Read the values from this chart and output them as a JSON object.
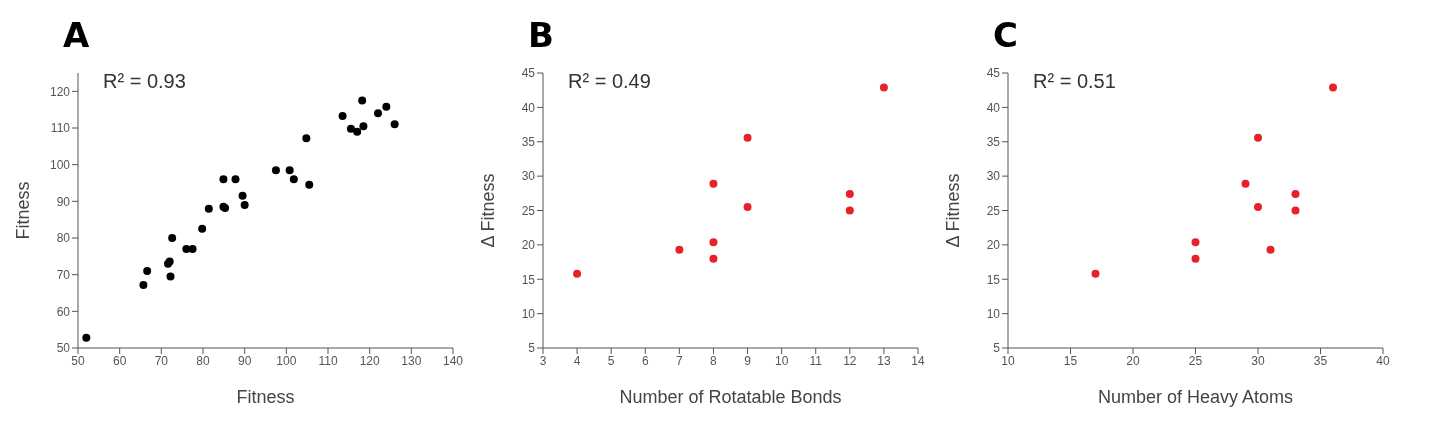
{
  "chart_data": [
    {
      "type": "scatter",
      "title": "A",
      "xlabel": "Fitness",
      "ylabel": "Fitness",
      "annotations": [
        "R² = 0.93"
      ],
      "marker": "circle",
      "grid": false,
      "legend": false,
      "x": [
        52,
        65.7,
        66.6,
        71.6,
        72,
        72.2,
        72.6,
        76,
        77.5,
        79.8,
        81.4,
        84.9,
        84.9,
        85.3,
        87.8,
        89.5,
        90,
        97.5,
        100.8,
        101.8,
        105.5,
        104.8,
        113.5,
        115.5,
        117,
        118.2,
        118.5,
        122,
        124,
        126
      ],
      "series": [
        {
          "color": "#000000",
          "values": [
            52.8,
            67.2,
            71,
            73,
            73.6,
            69.5,
            80,
            77,
            77,
            82.5,
            88,
            96,
            88.5,
            88.2,
            96,
            91.5,
            89,
            98.5,
            98.5,
            96,
            94.5,
            107.2,
            113.3,
            109.8,
            109,
            117.5,
            110.5,
            114,
            115.8,
            111
          ]
        }
      ],
      "xlim": [
        50,
        140
      ],
      "xticks": [
        50,
        60,
        70,
        80,
        90,
        100,
        110,
        120,
        130,
        140
      ],
      "ylim": [
        50,
        125
      ],
      "yticks": [
        50,
        60,
        70,
        80,
        90,
        100,
        110,
        120
      ]
    },
    {
      "type": "scatter",
      "title": "B",
      "xlabel": "Number of Rotatable Bonds",
      "ylabel": "Δ Fitness",
      "annotations": [
        "R² = 0.49"
      ],
      "marker": "circle",
      "grid": false,
      "legend": false,
      "x": [
        4,
        7,
        8,
        8,
        8,
        9,
        9,
        12,
        12,
        13
      ],
      "series": [
        {
          "color": "#e8202a",
          "values": [
            15.8,
            19.3,
            28.9,
            20.4,
            18,
            35.6,
            25.5,
            27.4,
            25,
            42.9
          ]
        }
      ],
      "xlim": [
        3,
        14
      ],
      "xticks": [
        3,
        4,
        5,
        6,
        7,
        8,
        9,
        10,
        11,
        12,
        13,
        14
      ],
      "ylim": [
        5,
        45
      ],
      "yticks": [
        5,
        10,
        15,
        20,
        25,
        30,
        35,
        40,
        45
      ]
    },
    {
      "type": "scatter",
      "title": "C",
      "xlabel": "Number of Heavy Atoms",
      "ylabel": "Δ Fitness",
      "annotations": [
        "R² = 0.51"
      ],
      "marker": "circle",
      "grid": false,
      "legend": false,
      "x": [
        17,
        25,
        25,
        29,
        30,
        30,
        31,
        33,
        33,
        36
      ],
      "series": [
        {
          "color": "#e8202a",
          "values": [
            15.8,
            20.4,
            18,
            28.9,
            35.6,
            25.5,
            19.3,
            27.4,
            25,
            42.9
          ]
        }
      ],
      "xlim": [
        10,
        40
      ],
      "xticks": [
        10,
        15,
        20,
        25,
        30,
        35,
        40
      ],
      "ylim": [
        5,
        45
      ],
      "yticks": [
        5,
        10,
        15,
        20,
        25,
        30,
        35,
        40,
        45
      ]
    }
  ]
}
